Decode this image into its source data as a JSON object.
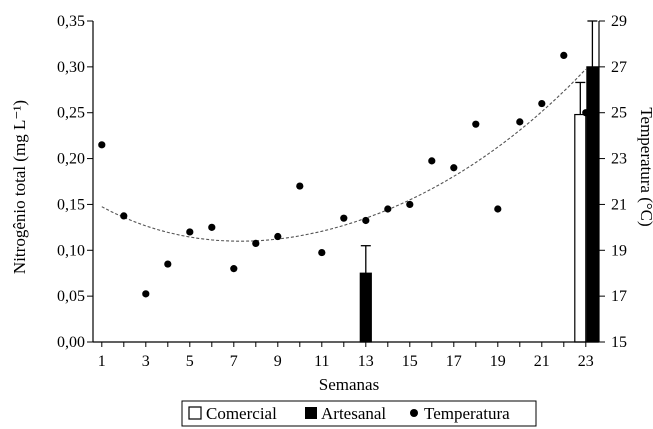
{
  "chart_data": {
    "type": "bar",
    "xlabel": "Semanas",
    "ylabel": "Nitrogênio total (mg L⁻¹)",
    "y2label": "Temperatura (°C)",
    "x_ticks": [
      "1",
      "3",
      "5",
      "7",
      "9",
      "11",
      "13",
      "15",
      "17",
      "19",
      "21",
      "23"
    ],
    "y_ticks": [
      "0,00",
      "0,05",
      "0,10",
      "0,15",
      "0,20",
      "0,25",
      "0,30",
      "0,35"
    ],
    "y2_ticks": [
      "15",
      "17",
      "19",
      "21",
      "23",
      "25",
      "27",
      "29"
    ],
    "xlim": [
      0.6,
      23.6
    ],
    "ylim": [
      0,
      0.35
    ],
    "y2lim": [
      15,
      29
    ],
    "legend": {
      "placement": "bottom-center",
      "items": [
        "Comercial",
        "Artesanal",
        "Temperatura"
      ]
    },
    "series": [
      {
        "name": "Comercial",
        "kind": "bar",
        "color": "#ffffff",
        "points": [
          {
            "week": 23,
            "value": 0.248,
            "error": 0.035
          }
        ]
      },
      {
        "name": "Artesanal",
        "kind": "bar",
        "color": "#000000",
        "points": [
          {
            "week": 13,
            "value": 0.075,
            "error": 0.03
          },
          {
            "week": 23,
            "value": 0.3,
            "error": 0.05
          }
        ]
      },
      {
        "name": "Temperatura",
        "kind": "scatter",
        "axis": "right",
        "color": "#000000",
        "weeks": [
          1,
          2,
          3,
          4,
          5,
          6,
          7,
          8,
          9,
          10,
          11,
          12,
          13,
          14,
          15,
          16,
          17,
          18,
          19,
          20,
          21,
          22,
          23
        ],
        "values": [
          23.6,
          20.5,
          17.1,
          18.4,
          19.8,
          20.0,
          18.2,
          19.3,
          19.6,
          21.8,
          18.9,
          20.4,
          20.3,
          20.8,
          21.0,
          22.9,
          22.6,
          24.5,
          20.8,
          24.6,
          25.4,
          27.5,
          25.0
        ],
        "trend_curve": [
          {
            "week": 1,
            "value": 20.9
          },
          {
            "week": 7,
            "value": 19.4
          },
          {
            "week": 13,
            "value": 20.4
          },
          {
            "week": 19,
            "value": 23.5
          },
          {
            "week": 23,
            "value": 26.9
          }
        ]
      }
    ]
  }
}
